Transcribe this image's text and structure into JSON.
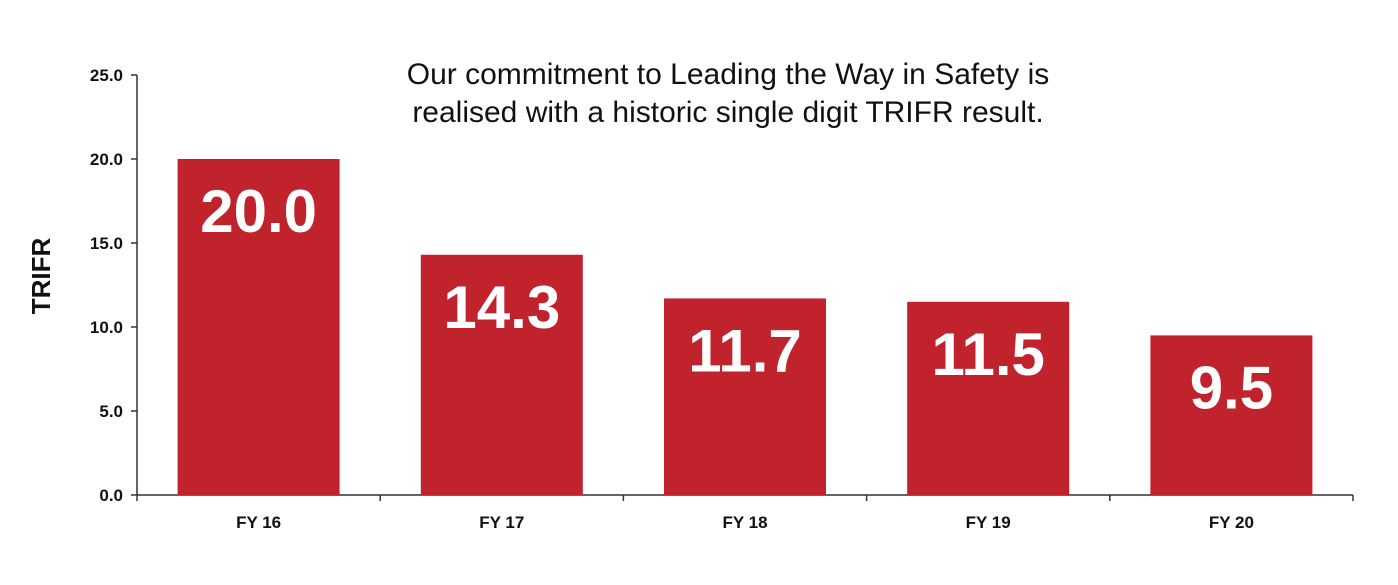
{
  "chart_data": {
    "type": "bar",
    "title_lines": [
      "Our commitment to Leading the Way in Safety is",
      "realised with a historic single digit TRIFR result."
    ],
    "xlabel": "",
    "ylabel": "TRIFR",
    "categories": [
      "FY 16",
      "FY 17",
      "FY 18",
      "FY 19",
      "FY 20"
    ],
    "values": [
      20.0,
      14.3,
      11.7,
      11.5,
      9.5
    ],
    "data_labels": [
      "20.0",
      "14.3",
      "11.7",
      "11.5",
      "9.5"
    ],
    "ylim": [
      0,
      25
    ],
    "yticks": [
      0,
      5,
      10,
      15,
      20,
      25
    ],
    "ytick_labels": [
      "0.0",
      "5.0",
      "10.0",
      "15.0",
      "20.0",
      "25.0"
    ],
    "grid": false,
    "legend": "none",
    "bar_color": "#c0232b"
  }
}
